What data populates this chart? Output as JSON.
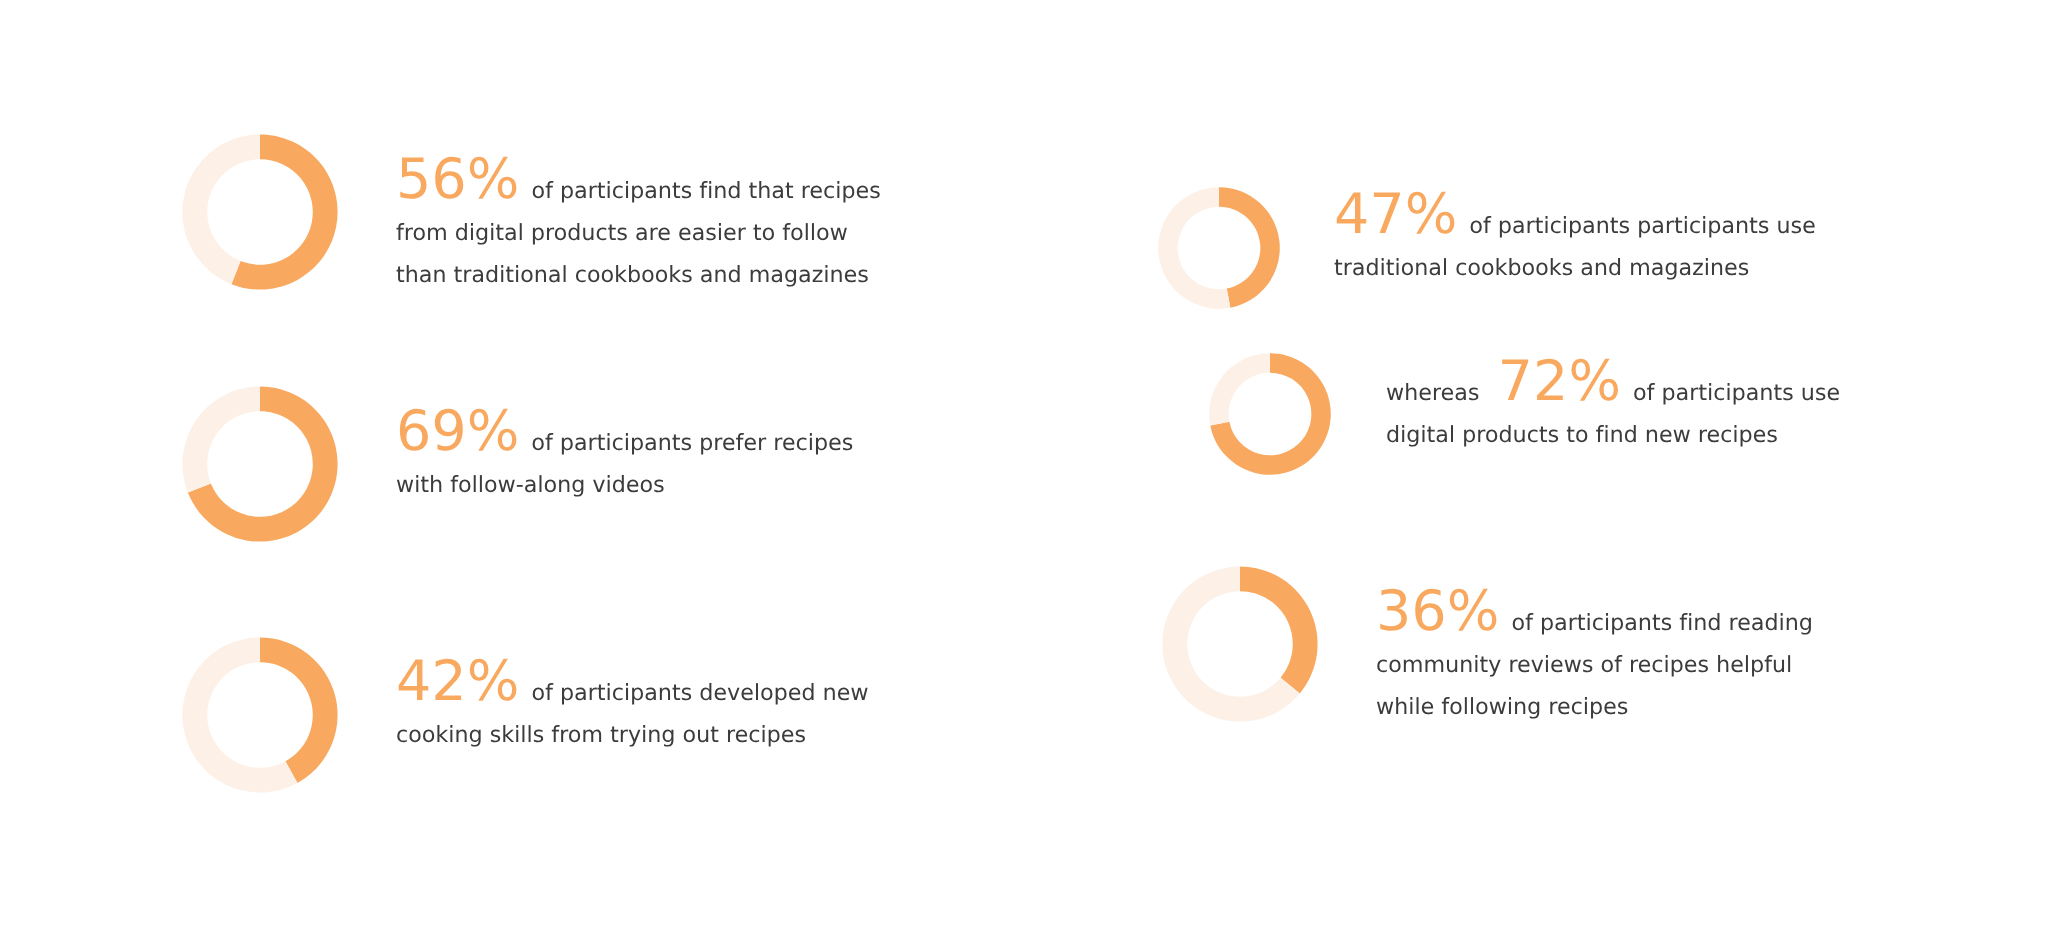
{
  "chart_data": [
    {
      "type": "donut",
      "categories": [
        null,
        null
      ],
      "values": [
        56,
        44
      ],
      "colors": [
        "#f9a95f",
        "#fdf0e7"
      ],
      "title": "56%",
      "subtitle": "of participants find that recipes\nfrom digital products are easier to follow\nthan traditional cookbooks and magazines"
    },
    {
      "type": "donut",
      "categories": [
        null,
        null
      ],
      "values": [
        69,
        31
      ],
      "colors": [
        "#f9a95f",
        "#fdf0e7"
      ],
      "title": "69%",
      "subtitle": "of participants prefer recipes\nwith follow-along videos"
    },
    {
      "type": "donut",
      "categories": [
        null,
        null
      ],
      "values": [
        42,
        58
      ],
      "colors": [
        "#f9a95f",
        "#fdf0e7"
      ],
      "title": "42%",
      "subtitle": "of participants developed new\ncooking skills from trying out recipes"
    },
    {
      "type": "donut",
      "categories": [
        null,
        null
      ],
      "values": [
        47,
        53
      ],
      "colors": [
        "#f9a95f",
        "#fdf0e7"
      ],
      "title": "47%",
      "subtitle": "of participants participants use\ntraditional cookbooks and magazines"
    },
    {
      "type": "donut",
      "categories": [
        null,
        null
      ],
      "values": [
        72,
        28
      ],
      "colors": [
        "#f9a95f",
        "#fdf0e7"
      ],
      "title": "72%",
      "subtitle": "of participants use\ndigital products to find new recipes",
      "annotations": [
        "whereas"
      ]
    },
    {
      "type": "donut",
      "categories": [
        null,
        null
      ],
      "values": [
        36,
        64
      ],
      "colors": [
        "#f9a95f",
        "#fdf0e7"
      ],
      "title": "36%",
      "subtitle": "of participants find reading\ncommunity reviews of recipes helpful\nwhile following recipes"
    }
  ]
}
